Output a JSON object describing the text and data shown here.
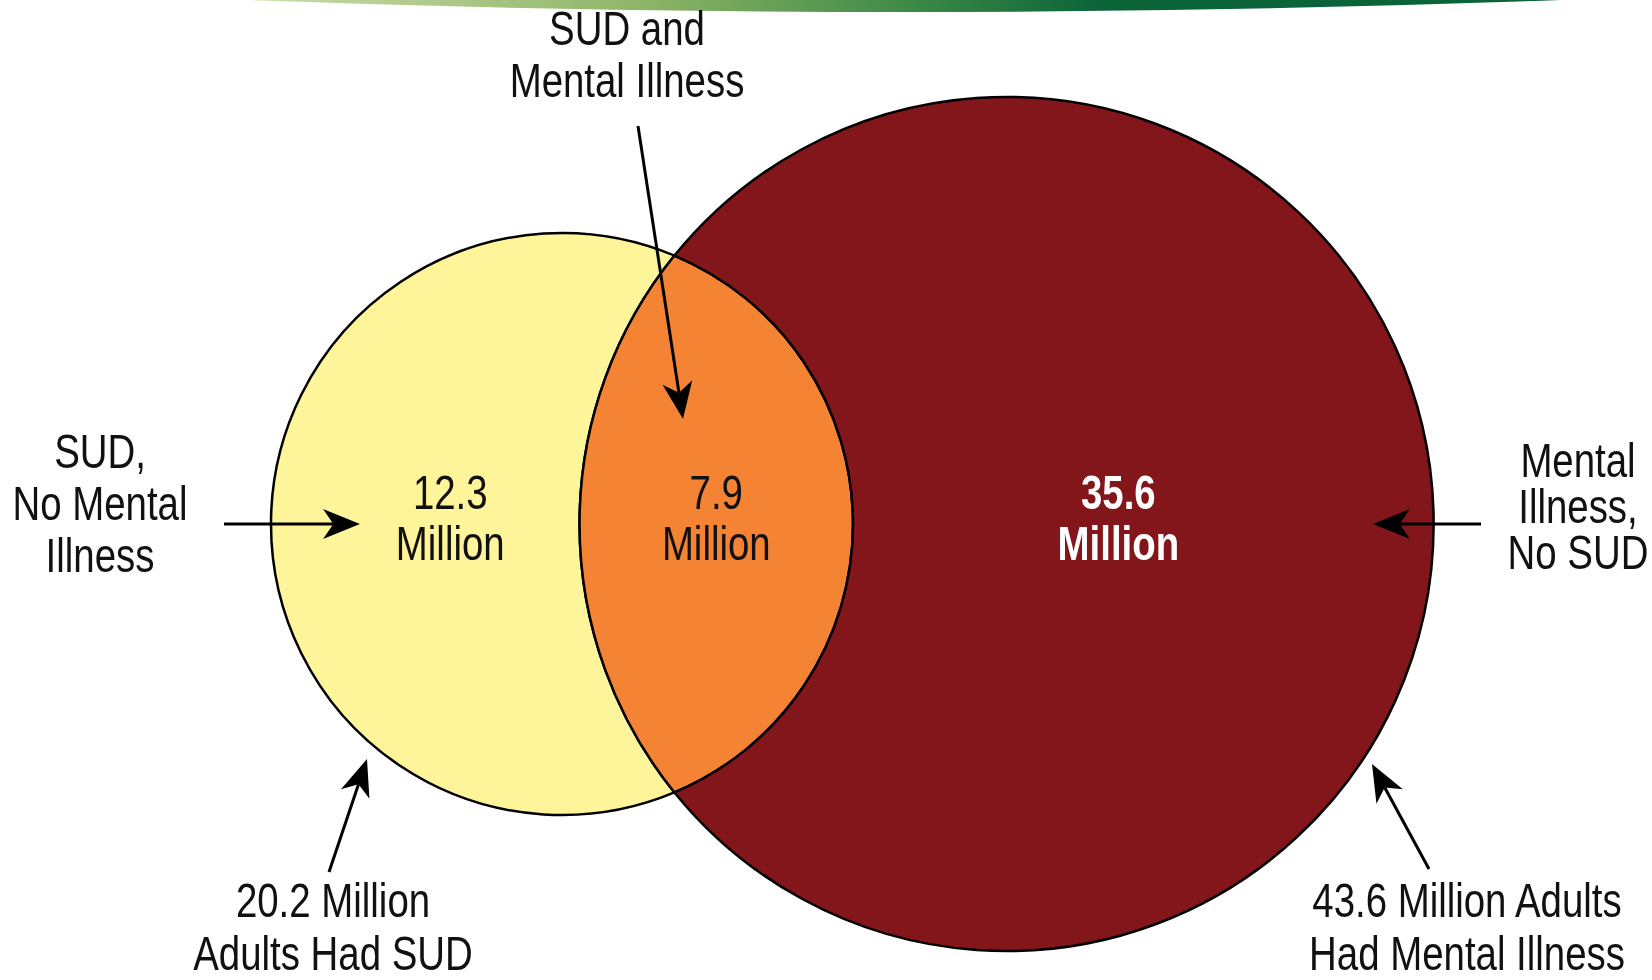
{
  "chart_data": {
    "type": "other",
    "categories": [
      "SUD,\nNo Mental\nIllness",
      "SUD and\nMental Illness",
      "Mental\nIllness,\nNo SUD"
    ],
    "values": [
      12.3,
      7.9,
      35.6
    ],
    "colors": [
      "#fef49a",
      "#f48434",
      "#82161b"
    ],
    "value_labels": [
      "12.3\nMillion",
      "7.9\nMillion",
      "35.6\nMillion"
    ],
    "annotations": [
      "20.2 Million\nAdults Had SUD",
      "43.6 Million Adults\nHad Mental Illness"
    ]
  }
}
